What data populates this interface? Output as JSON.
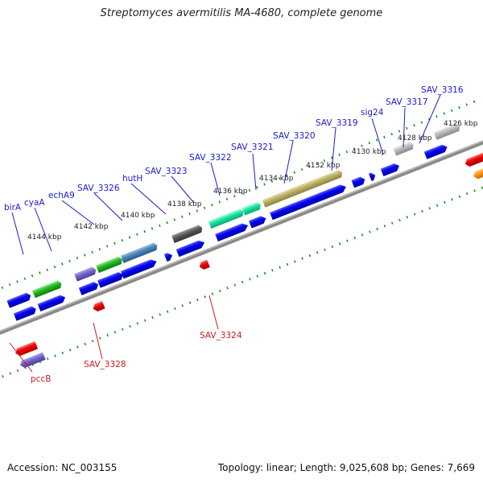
{
  "header": {
    "title": "Streptomyces avermitilis MA-4680, complete genome"
  },
  "footer": {
    "accession": "Accession: NC_003155",
    "summary": "Topology: linear; Length: 9,025,608 bp; Genes: 7,669"
  },
  "ticks": [
    "4144 kbp",
    "4142 kbp",
    "4140 kbp",
    "4138 kbp",
    "4136 kbp",
    "4134 kbp",
    "4132 kbp",
    "4130 kbp",
    "4128 kbp",
    "4126 kbp"
  ],
  "upper_genes": [
    {
      "name": "birA"
    },
    {
      "name": "cyaA"
    },
    {
      "name": "echA9"
    },
    {
      "name": "SAV_3326"
    },
    {
      "name": "hutH"
    },
    {
      "name": "SAV_3323"
    },
    {
      "name": "SAV_3322"
    },
    {
      "name": "SAV_3321"
    },
    {
      "name": "SAV_3320"
    },
    {
      "name": "SAV_3319"
    },
    {
      "name": "sig24"
    },
    {
      "name": "SAV_3317"
    },
    {
      "name": "SAV_3316"
    }
  ],
  "lower_genes": [
    {
      "name": "SAV_3324"
    },
    {
      "name": "SAV_3328"
    },
    {
      "name": "pccB"
    }
  ],
  "colors": {
    "forward_gene": "#0000e6",
    "reverse_gene": "#e60000",
    "forward_label": "#1a1acc",
    "reverse_label": "#cc1a1a",
    "tick_mark": "#1a8a1a",
    "backbone": "#8a8a8a"
  }
}
